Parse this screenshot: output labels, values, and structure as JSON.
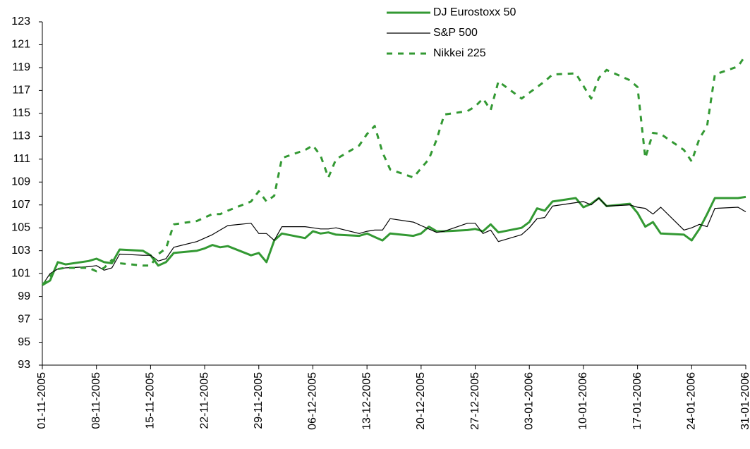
{
  "chart_data": {
    "type": "line",
    "x": [
      "01-11-2005",
      "02-11-2005",
      "03-11-2005",
      "04-11-2005",
      "07-11-2005",
      "08-11-2005",
      "09-11-2005",
      "10-11-2005",
      "11-11-2005",
      "14-11-2005",
      "15-11-2005",
      "16-11-2005",
      "17-11-2005",
      "18-11-2005",
      "21-11-2005",
      "22-11-2005",
      "23-11-2005",
      "24-11-2005",
      "25-11-2005",
      "28-11-2005",
      "29-11-2005",
      "30-11-2005",
      "01-12-2005",
      "02-12-2005",
      "05-12-2005",
      "06-12-2005",
      "07-12-2005",
      "08-12-2005",
      "09-12-2005",
      "12-12-2005",
      "13-12-2005",
      "14-12-2005",
      "15-12-2005",
      "16-12-2005",
      "19-12-2005",
      "20-12-2005",
      "21-12-2005",
      "22-12-2005",
      "23-12-2005",
      "26-12-2005",
      "27-12-2005",
      "28-12-2005",
      "29-12-2005",
      "30-12-2005",
      "02-01-2006",
      "03-01-2006",
      "04-01-2006",
      "05-01-2006",
      "06-01-2006",
      "09-01-2006",
      "10-01-2006",
      "11-01-2006",
      "12-01-2006",
      "13-01-2006",
      "16-01-2006",
      "17-01-2006",
      "18-01-2006",
      "19-01-2006",
      "20-01-2006",
      "23-01-2006",
      "24-01-2006",
      "25-01-2006",
      "26-01-2006",
      "27-01-2006",
      "30-01-2006",
      "31-01-2006"
    ],
    "series": [
      {
        "name": "DJ Eurostoxx 50",
        "color": "#339933",
        "line_style": "solid",
        "values": [
          100,
          100.4,
          102,
          101.8,
          102.1,
          102.3,
          102,
          101.9,
          103.1,
          103,
          102.6,
          101.7,
          102,
          102.8,
          103,
          103.2,
          103.5,
          103.3,
          103.4,
          102.6,
          102.8,
          102,
          103.9,
          104.5,
          104.1,
          104.7,
          104.5,
          104.6,
          104.4,
          104.3,
          104.5,
          104.2,
          103.9,
          104.5,
          104.3,
          104.5,
          105.1,
          104.7,
          104.7,
          104.8,
          104.9,
          104.7,
          105.3,
          104.6,
          105,
          105.5,
          106.7,
          106.5,
          107.3,
          107.6,
          106.8,
          107.1,
          107.6,
          106.9,
          107.1,
          106.3,
          105.1,
          105.5,
          104.5,
          104.4,
          103.9,
          104.9,
          106.2,
          107.6,
          107.6,
          107.7
        ]
      },
      {
        "name": "S&P 500",
        "color": "#000000",
        "line_style": "thin",
        "values": [
          100,
          101,
          101.4,
          101.5,
          101.6,
          101.7,
          101.3,
          101.5,
          102.7,
          102.6,
          102.6,
          102.1,
          102.3,
          103.3,
          103.8,
          104.1,
          104.4,
          104.8,
          105.2,
          105.4,
          104.5,
          104.5,
          103.9,
          105.1,
          105.1,
          105,
          104.9,
          104.9,
          105,
          104.5,
          104.7,
          104.8,
          104.8,
          105.8,
          105.5,
          105.2,
          104.9,
          104.6,
          104.7,
          105.4,
          105.4,
          104.5,
          104.8,
          103.8,
          104.4,
          105,
          105.8,
          105.9,
          106.9,
          107.2,
          107.3,
          107,
          107.6,
          106.9,
          107,
          106.8,
          106.7,
          106.2,
          106.8,
          104.8,
          105,
          105.3,
          105.1,
          106.7,
          106.8,
          106.4
        ]
      },
      {
        "name": "Nikkei 225",
        "color": "#339933",
        "line_style": "dashed",
        "values": [
          100,
          100.8,
          101.4,
          101.5,
          101.5,
          101.2,
          101.5,
          102.2,
          101.9,
          101.7,
          101.7,
          102.7,
          103.2,
          105.3,
          105.6,
          105.9,
          106.2,
          106.2,
          106.5,
          107.3,
          108.2,
          107.3,
          107.8,
          111.1,
          111.8,
          112.2,
          111.3,
          109.4,
          111,
          112.2,
          113.2,
          113.9,
          111.6,
          110.1,
          109.4,
          110.2,
          111,
          112.7,
          114.9,
          115.2,
          115.6,
          116.3,
          115.3,
          117.8,
          116.3,
          116.8,
          117.3,
          117.8,
          118.4,
          118.5,
          117.4,
          116.3,
          118.1,
          118.8,
          117.9,
          117.3,
          111.1,
          113.3,
          113.2,
          111.8,
          110.8,
          112.8,
          113.9,
          118.4,
          119.1,
          120.1
        ]
      }
    ],
    "xticks": [
      "01-11-2005",
      "08-11-2005",
      "15-11-2005",
      "22-11-2005",
      "29-11-2005",
      "06-12-2005",
      "13-12-2005",
      "20-12-2005",
      "27-12-2005",
      "03-01-2006",
      "10-01-2006",
      "17-01-2006",
      "24-01-2006",
      "31-01-2006"
    ],
    "ylim": [
      93,
      123
    ],
    "yticks": [
      93,
      95,
      97,
      99,
      101,
      103,
      105,
      107,
      109,
      111,
      113,
      115,
      117,
      119,
      121,
      123
    ],
    "grid": false,
    "legend": "top-right"
  }
}
